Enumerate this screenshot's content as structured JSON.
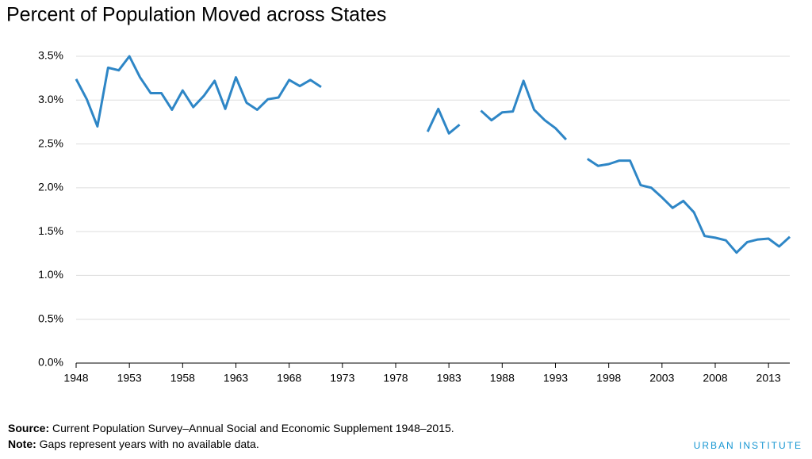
{
  "chart_data": {
    "type": "line",
    "title": "Percent of Population Moved across States",
    "x": [
      1948,
      1949,
      1950,
      1951,
      1952,
      1953,
      1954,
      1955,
      1956,
      1957,
      1958,
      1959,
      1960,
      1961,
      1962,
      1963,
      1964,
      1965,
      1966,
      1967,
      1968,
      1969,
      1970,
      1971,
      1972,
      1973,
      1974,
      1975,
      1976,
      1977,
      1978,
      1979,
      1980,
      1981,
      1982,
      1983,
      1984,
      1985,
      1986,
      1987,
      1988,
      1989,
      1990,
      1991,
      1992,
      1993,
      1994,
      1995,
      1996,
      1997,
      1998,
      1999,
      2000,
      2001,
      2002,
      2003,
      2004,
      2005,
      2006,
      2007,
      2008,
      2009,
      2010,
      2011,
      2012,
      2013,
      2014,
      2015
    ],
    "series": [
      {
        "color": "#2e86c6",
        "values": [
          3.24,
          3.01,
          2.7,
          3.37,
          3.34,
          3.5,
          3.26,
          3.08,
          3.08,
          2.89,
          3.11,
          2.92,
          3.05,
          3.22,
          2.9,
          3.26,
          2.97,
          2.89,
          3.01,
          3.03,
          3.23,
          3.16,
          3.23,
          3.15,
          null,
          null,
          null,
          null,
          null,
          null,
          null,
          null,
          null,
          2.64,
          2.9,
          2.62,
          2.72,
          null,
          2.88,
          2.77,
          2.86,
          2.87,
          3.22,
          2.89,
          2.77,
          2.68,
          2.55,
          null,
          2.33,
          2.25,
          2.27,
          2.31,
          2.31,
          2.03,
          2.0,
          1.89,
          1.77,
          1.85,
          1.72,
          1.45,
          1.43,
          1.4,
          1.26,
          1.38,
          1.41,
          1.42,
          1.33,
          1.44
        ]
      }
    ],
    "xlim": [
      1948,
      2015
    ],
    "xticks": [
      1948,
      1953,
      1958,
      1963,
      1968,
      1973,
      1978,
      1983,
      1988,
      1993,
      1998,
      2003,
      2008,
      2013
    ],
    "ylim": [
      0,
      3.5
    ],
    "yticks": [
      {
        "value": 0,
        "label": "0.0%"
      },
      {
        "value": 0.5,
        "label": "0.5%"
      },
      {
        "value": 1,
        "label": "1.0%"
      },
      {
        "value": 1.5,
        "label": "1.5%"
      },
      {
        "value": 2,
        "label": "2.0%"
      },
      {
        "value": 2.5,
        "label": "2.5%"
      },
      {
        "value": 3,
        "label": "3.0%"
      },
      {
        "value": 3.5,
        "label": "3.5%"
      }
    ],
    "grid": true,
    "source_label": "Source:",
    "source": "Current Population Survey–Annual Social and Economic Supplement 1948–2015.",
    "note_label": "Note:",
    "note": "Gaps represent years with no available data.",
    "brand": "URBAN INSTITUTE"
  }
}
